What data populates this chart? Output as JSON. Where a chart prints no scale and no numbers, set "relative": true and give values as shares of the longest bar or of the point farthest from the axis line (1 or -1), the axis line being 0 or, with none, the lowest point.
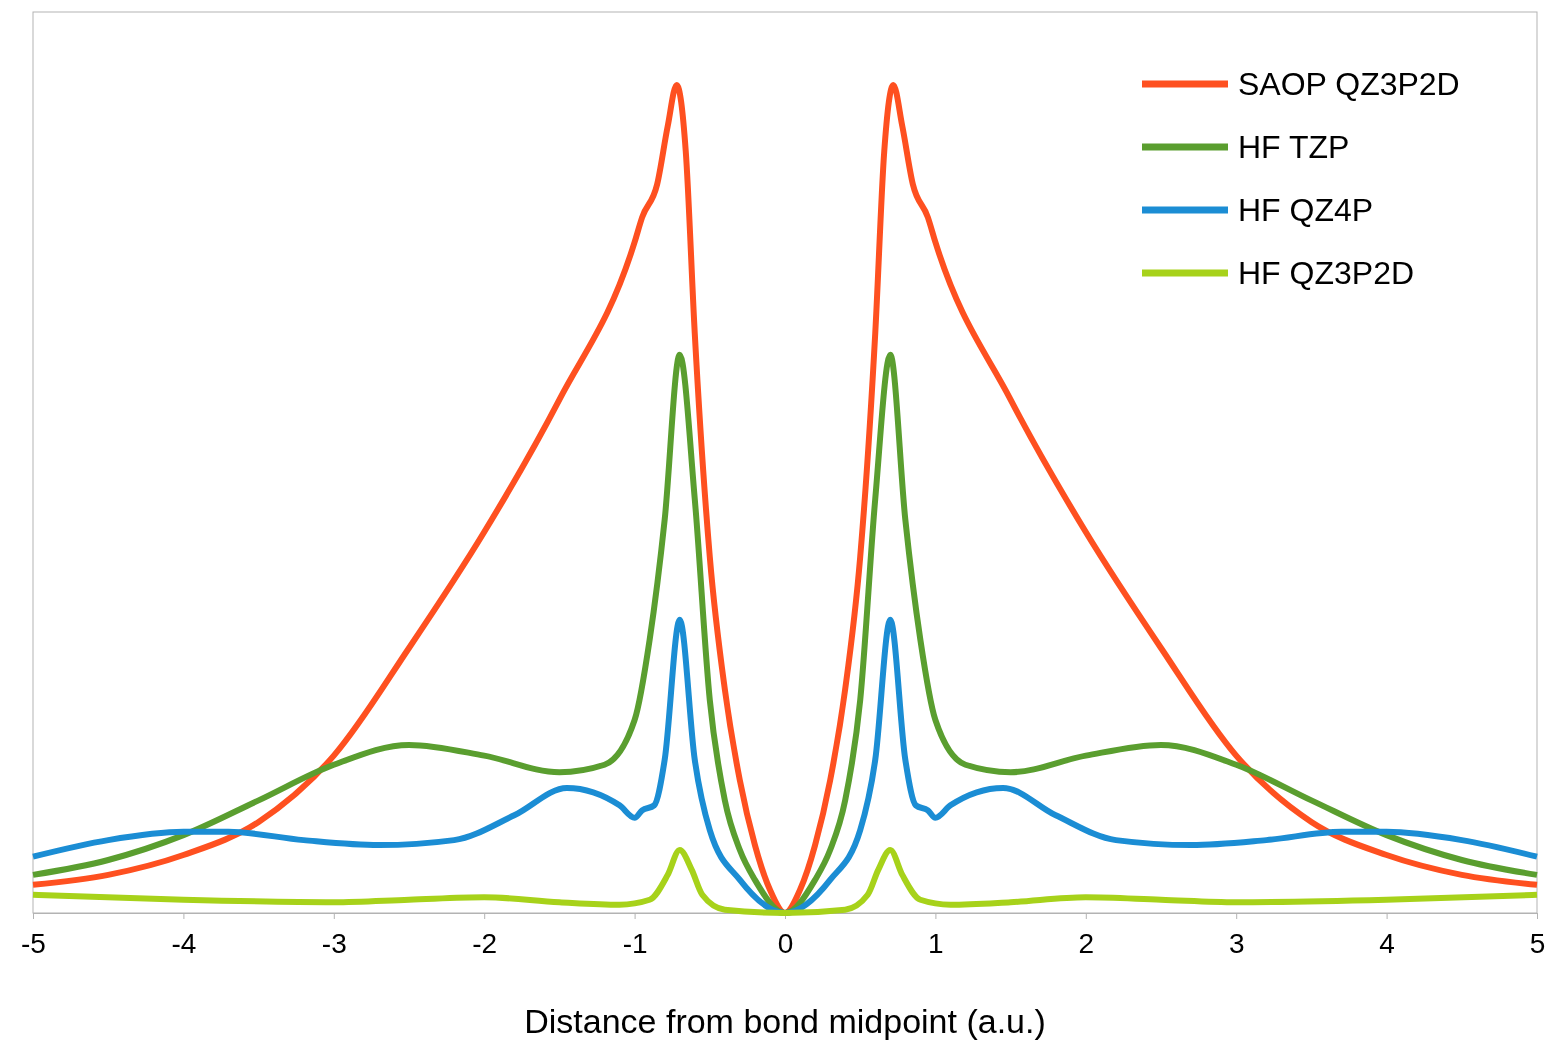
{
  "chart_data": {
    "type": "line",
    "relative": true,
    "xlabel": "Distance from bond midpoint (a.u.)",
    "xlim": [
      -5,
      5
    ],
    "xticks": [
      -5,
      -4,
      -3,
      -2,
      -1,
      0,
      1,
      2,
      3,
      4,
      5
    ],
    "tick_labels": "x",
    "grid": false,
    "legend": "top right",
    "marker": "none",
    "line_style": "solid",
    "series": [
      {
        "name": "SAOP QZ3P2D",
        "color": "#fe5020",
        "x": [
          -5,
          -4.5,
          -4,
          -3.5,
          -3,
          -2.5,
          -2,
          -1.5,
          -1,
          -0.95,
          -0.85,
          -0.78,
          -0.72,
          -0.66,
          -0.6,
          -0.5,
          -0.4,
          -0.3,
          -0.2,
          -0.1,
          0,
          0.1,
          0.2,
          0.3,
          0.4,
          0.5,
          0.6,
          0.66,
          0.72,
          0.78,
          0.85,
          0.95,
          1,
          1.5,
          2,
          2.5,
          3,
          3.5,
          4,
          4.5,
          5
        ],
        "values": [
          0.034,
          0.046,
          0.07,
          0.11,
          0.19,
          0.32,
          0.46,
          0.62,
          0.81,
          0.84,
          0.88,
          0.95,
          1,
          0.92,
          0.7,
          0.43,
          0.27,
          0.16,
          0.082,
          0.028,
          0,
          0.028,
          0.082,
          0.16,
          0.27,
          0.43,
          0.7,
          0.92,
          1,
          0.95,
          0.88,
          0.84,
          0.81,
          0.62,
          0.46,
          0.32,
          0.19,
          0.11,
          0.07,
          0.046,
          0.034
        ]
      },
      {
        "name": "HF TZP",
        "color": "#5a9e2f",
        "x": [
          -5,
          -4.5,
          -4,
          -3.5,
          -3,
          -2.5,
          -2,
          -1.5,
          -1.2,
          -1,
          -0.9,
          -0.8,
          -0.7,
          -0.6,
          -0.5,
          -0.4,
          -0.3,
          -0.2,
          0,
          0.2,
          0.3,
          0.4,
          0.5,
          0.6,
          0.7,
          0.8,
          0.9,
          1,
          1.2,
          1.5,
          2,
          2.5,
          3,
          3.5,
          4,
          4.5,
          5
        ],
        "values": [
          0.046,
          0.064,
          0.094,
          0.136,
          0.179,
          0.203,
          0.19,
          0.17,
          0.179,
          0.233,
          0.33,
          0.475,
          0.674,
          0.5,
          0.257,
          0.136,
          0.076,
          0.04,
          0,
          0.04,
          0.076,
          0.136,
          0.257,
          0.5,
          0.674,
          0.475,
          0.33,
          0.233,
          0.179,
          0.17,
          0.19,
          0.203,
          0.179,
          0.136,
          0.094,
          0.064,
          0.046
        ]
      },
      {
        "name": "HF QZ4P",
        "color": "#1b8dd4",
        "x": [
          -5,
          -4.5,
          -4,
          -3.7,
          -3.2,
          -2.7,
          -2.2,
          -1.8,
          -1.45,
          -1.1,
          -1,
          -0.95,
          -0.87,
          -0.8,
          -0.7,
          -0.6,
          -0.5,
          -0.3,
          0,
          0.3,
          0.5,
          0.6,
          0.7,
          0.8,
          0.87,
          0.95,
          1,
          1.1,
          1.45,
          1.8,
          2.2,
          2.7,
          3.2,
          3.7,
          4,
          4.5,
          5
        ],
        "values": [
          0.068,
          0.088,
          0.098,
          0.098,
          0.088,
          0.082,
          0.088,
          0.118,
          0.151,
          0.13,
          0.115,
          0.124,
          0.13,
          0.185,
          0.354,
          0.185,
          0.1,
          0.04,
          0,
          0.04,
          0.1,
          0.185,
          0.354,
          0.185,
          0.13,
          0.124,
          0.115,
          0.13,
          0.151,
          0.118,
          0.088,
          0.082,
          0.088,
          0.098,
          0.098,
          0.088,
          0.068
        ]
      },
      {
        "name": "HF QZ3P2D",
        "color": "#a7d21a",
        "x": [
          -5,
          -4,
          -3,
          -2.5,
          -2,
          -1.5,
          -1.1,
          -0.9,
          -0.78,
          -0.7,
          -0.62,
          -0.55,
          -0.4,
          0,
          0.4,
          0.55,
          0.62,
          0.7,
          0.78,
          0.9,
          1.1,
          1.5,
          2,
          2.5,
          3,
          4,
          5
        ],
        "values": [
          0.022,
          0.016,
          0.013,
          0.016,
          0.019,
          0.013,
          0.01,
          0.016,
          0.046,
          0.076,
          0.052,
          0.022,
          0.004,
          0,
          0.004,
          0.022,
          0.052,
          0.076,
          0.046,
          0.016,
          0.01,
          0.013,
          0.019,
          0.016,
          0.013,
          0.016,
          0.022
        ]
      }
    ]
  }
}
